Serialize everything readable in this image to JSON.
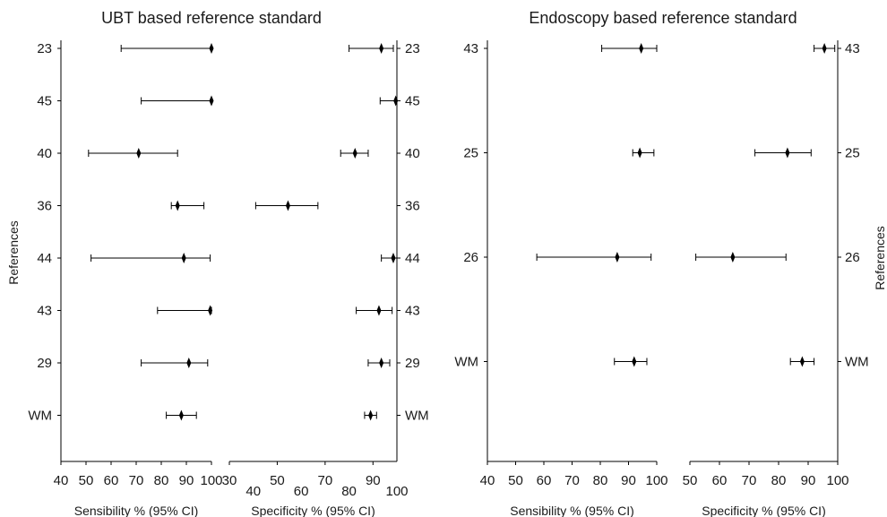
{
  "chart_data": [
    {
      "type": "forest",
      "title": "UBT based reference standard",
      "ylabel": "References",
      "studies": [
        "23",
        "45",
        "40",
        "36",
        "44",
        "43",
        "29",
        "WM"
      ],
      "sensitivity": {
        "xlabel": "Sensibility % (95% CI)",
        "xlim": [
          40,
          100
        ],
        "ticks": [
          40,
          50,
          60,
          70,
          80,
          90,
          100
        ],
        "estimates": [
          100,
          100,
          71,
          86.5,
          89,
          99.5,
          91,
          88
        ],
        "lower": [
          64,
          72,
          51,
          84,
          52,
          78.5,
          72,
          82
        ],
        "upper": [
          100,
          100,
          86.5,
          97,
          99.5,
          100,
          98.5,
          94
        ]
      },
      "specificity": {
        "xlabel": "Specificity % (95% CI)",
        "xlim": [
          30,
          100
        ],
        "ticks": [
          30,
          50,
          70,
          90
        ],
        "ticks_lower": [
          40,
          60,
          80,
          100
        ],
        "estimates": [
          93.5,
          99.5,
          82.5,
          54.5,
          98.5,
          92.5,
          93.5,
          89
        ],
        "lower": [
          80,
          93,
          76.5,
          41,
          93.5,
          83,
          88,
          86.5
        ],
        "upper": [
          98.5,
          100,
          88,
          67,
          100,
          98,
          97,
          91.5
        ]
      }
    },
    {
      "type": "forest",
      "title": "Endoscopy based reference standard",
      "ylabel": "References",
      "studies": [
        "43",
        "25",
        "26",
        "WM"
      ],
      "sensitivity": {
        "xlabel": "Sensibility % (95% CI)",
        "xlim": [
          40,
          100
        ],
        "ticks": [
          40,
          50,
          60,
          70,
          80,
          90,
          100
        ],
        "estimates": [
          94.5,
          94,
          86,
          92
        ],
        "lower": [
          80.5,
          91.5,
          57.5,
          85
        ],
        "upper": [
          100,
          99,
          98,
          96.5
        ]
      },
      "specificity": {
        "xlabel": "Specificity % (95% CI)",
        "xlim": [
          50,
          100
        ],
        "ticks": [
          50,
          60,
          70,
          80,
          90,
          100
        ],
        "estimates": [
          95.5,
          83,
          64.5,
          88
        ],
        "lower": [
          92,
          72,
          52,
          84
        ],
        "upper": [
          99,
          91,
          82.5,
          92
        ]
      }
    }
  ]
}
